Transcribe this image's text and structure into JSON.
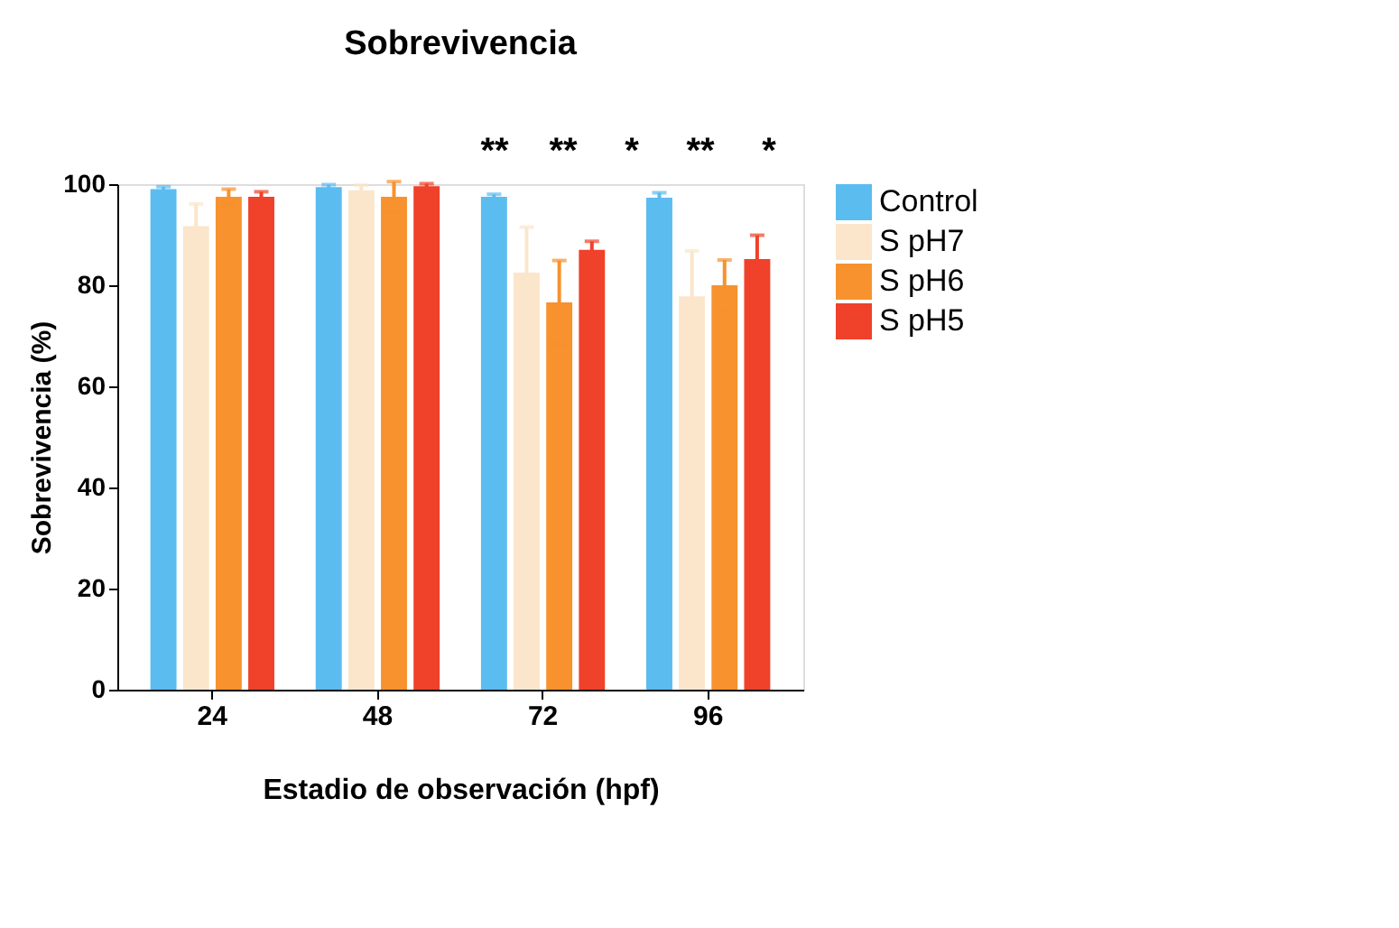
{
  "chart_data": {
    "type": "bar",
    "title": "Sobrevivencia",
    "xlabel": "Estadio de observación (hpf)",
    "ylabel": "Sobrevivencia (%)",
    "categories": [
      "24",
      "48",
      "72",
      "96"
    ],
    "series": [
      {
        "name": "Control",
        "color": "#5bbcf0",
        "values": [
          99,
          99.4,
          97.5,
          97.3
        ],
        "errors": [
          0.5,
          0.5,
          0.5,
          1
        ]
      },
      {
        "name": "S pH7",
        "color": "#fbe6cc",
        "values": [
          91.7,
          98.8,
          82.5,
          77.8
        ],
        "errors": [
          4.4,
          1,
          9,
          9
        ]
      },
      {
        "name": "S pH6",
        "color": "#f7922f",
        "values": [
          97.5,
          97.5,
          76.6,
          80
        ],
        "errors": [
          1.5,
          3,
          8.3,
          5
        ]
      },
      {
        "name": "S pH5",
        "color": "#f0412b",
        "values": [
          97.5,
          99.6,
          87,
          85.2
        ],
        "errors": [
          1,
          0.5,
          1.7,
          4.7
        ]
      }
    ],
    "ylim": [
      0,
      100
    ],
    "yticks": [
      0,
      20,
      40,
      60,
      80,
      100
    ],
    "grid": false,
    "legend": "right",
    "annotations": [
      "**",
      "**",
      "*",
      "**",
      "*"
    ]
  }
}
